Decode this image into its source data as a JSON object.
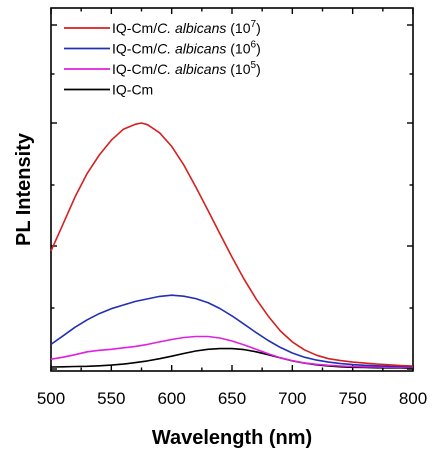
{
  "chart_data": {
    "type": "line",
    "xlabel": "Wavelength (nm)",
    "ylabel": "PL Intensity",
    "xlim": [
      500,
      800
    ],
    "ylim": [
      0,
      100
    ],
    "x_ticks": [
      500,
      550,
      600,
      650,
      700,
      750,
      800
    ],
    "x_tick_labels": [
      "500",
      "550",
      "600",
      "650",
      "700",
      "750",
      "800"
    ],
    "y_tick_labels_shown": false,
    "grid": false,
    "legend_position": "top-left",
    "series": [
      {
        "legend_parts": {
          "prefix": "IQ-Cm/",
          "italic": "C. albicans",
          "base": " (10",
          "exp": "7",
          "suffix": ")"
        },
        "color": "#d62020",
        "x": [
          500,
          510,
          520,
          530,
          540,
          550,
          560,
          570,
          575,
          580,
          590,
          600,
          610,
          620,
          630,
          640,
          650,
          660,
          670,
          680,
          690,
          700,
          710,
          720,
          730,
          740,
          750,
          760,
          770,
          780,
          790,
          800
        ],
        "y": [
          48.0,
          59.0,
          70.0,
          79.5,
          87.0,
          93.0,
          97.5,
          99.5,
          100.0,
          99.3,
          96.0,
          90.5,
          83.0,
          74.0,
          64.5,
          55.0,
          45.5,
          36.5,
          28.5,
          21.5,
          15.5,
          11.0,
          7.8,
          5.6,
          4.2,
          3.4,
          2.8,
          2.4,
          2.0,
          1.7,
          1.4,
          1.2
        ]
      },
      {
        "legend_parts": {
          "prefix": "IQ-Cm/",
          "italic": "C. albicans",
          "base": " (10",
          "exp": "6",
          "suffix": ")"
        },
        "color": "#2230b4",
        "x": [
          500,
          510,
          520,
          530,
          540,
          550,
          560,
          570,
          580,
          590,
          600,
          610,
          620,
          630,
          640,
          650,
          660,
          670,
          680,
          690,
          700,
          710,
          720,
          730,
          740,
          750,
          760,
          770,
          780,
          790,
          800
        ],
        "y": [
          10.0,
          13.5,
          17.0,
          20.0,
          22.5,
          24.5,
          26.0,
          27.5,
          28.5,
          29.5,
          30.0,
          29.6,
          28.6,
          27.0,
          24.6,
          21.6,
          18.2,
          14.8,
          11.6,
          8.8,
          6.5,
          4.8,
          3.6,
          2.8,
          2.2,
          1.8,
          1.5,
          1.3,
          1.1,
          1.0,
          0.9
        ]
      },
      {
        "legend_parts": {
          "prefix": "IQ-Cm/",
          "italic": "C. albicans",
          "base": " (10",
          "exp": "5",
          "suffix": ")"
        },
        "color": "#e020e0",
        "x": [
          500,
          510,
          520,
          530,
          540,
          550,
          560,
          570,
          580,
          590,
          600,
          610,
          620,
          630,
          640,
          650,
          660,
          670,
          680,
          690,
          700,
          710,
          720,
          730,
          740,
          750,
          760,
          770,
          780,
          790,
          800
        ],
        "y": [
          4.0,
          4.8,
          5.8,
          7.0,
          7.6,
          8.0,
          8.6,
          9.2,
          10.0,
          11.0,
          12.0,
          12.8,
          13.2,
          13.2,
          12.6,
          11.4,
          9.8,
          8.0,
          6.2,
          4.6,
          3.4,
          2.5,
          1.9,
          1.5,
          1.2,
          1.0,
          0.9,
          0.8,
          0.7,
          0.6,
          0.6
        ]
      },
      {
        "legend_parts": {
          "prefix": "IQ-Cm",
          "italic": "",
          "base": "",
          "exp": "",
          "suffix": ""
        },
        "color": "#000000",
        "x": [
          500,
          510,
          520,
          530,
          540,
          550,
          560,
          570,
          580,
          590,
          600,
          610,
          620,
          630,
          640,
          650,
          660,
          670,
          680,
          690,
          700,
          710,
          720,
          730,
          740,
          750,
          760,
          770,
          780,
          790,
          800
        ],
        "y": [
          0.8,
          0.9,
          1.0,
          1.1,
          1.3,
          1.6,
          2.0,
          2.6,
          3.3,
          4.2,
          5.2,
          6.3,
          7.3,
          8.0,
          8.3,
          8.3,
          7.9,
          7.0,
          5.8,
          4.5,
          3.3,
          2.4,
          1.7,
          1.2,
          0.9,
          0.7,
          0.6,
          0.5,
          0.4,
          0.4,
          0.3
        ]
      }
    ]
  }
}
